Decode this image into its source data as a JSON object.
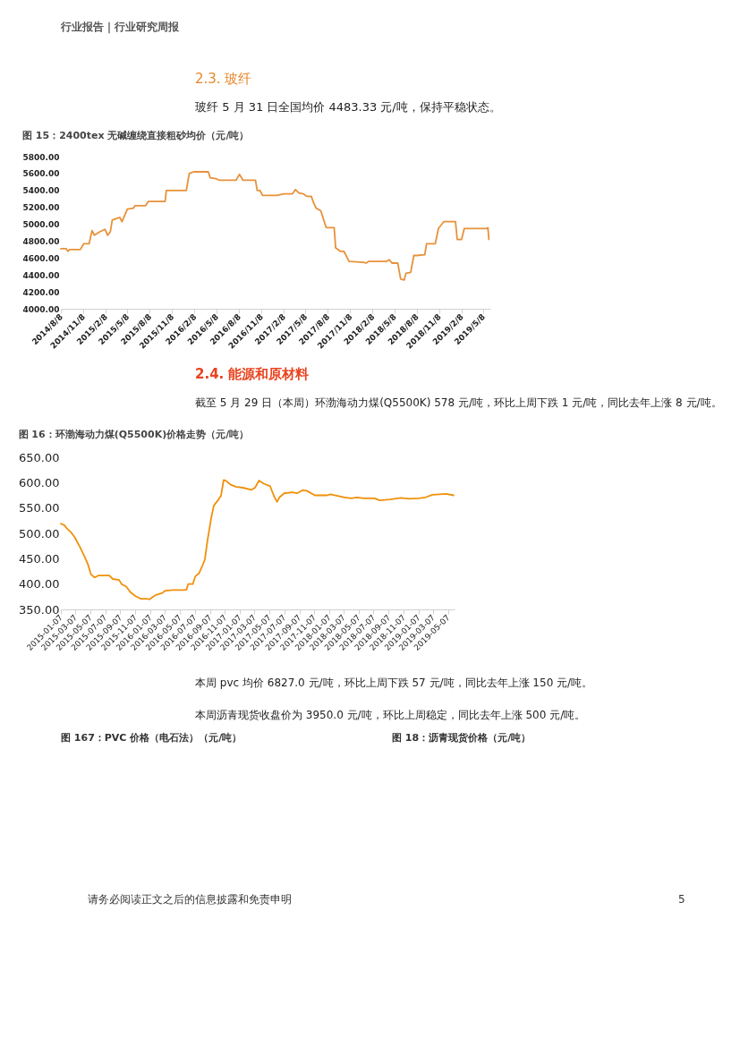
{
  "chart_data": [
    {
      "type": "line",
      "title": "图 15：2400tex 无碱缠绕直接粗砂均价（元/吨）",
      "annotations": [
        "行业报告｜行业研究周报",
        "2.3. 玻纤",
        "玻纤 5 月 31 日全国均价 4483.33 元/吨，保持平稳状态。"
      ],
      "series": [
        {
          "color": "#e8913a",
          "x": [
            "2014-08-08",
            "2014-08-30",
            "2014-09-06",
            "2014-09-13",
            "2014-10-27",
            "2014-11-10",
            "2014-12-02",
            "2014-12-14",
            "2014-12-24",
            "2015-01-15",
            "2015-02-05",
            "2015-02-16",
            "2015-02-27",
            "2015-03-07",
            "2015-03-28",
            "2015-04-07",
            "2015-04-16",
            "2015-05-08",
            "2015-06-02",
            "2015-06-09",
            "2015-07-22",
            "2015-08-02",
            "2015-10-10",
            "2015-10-15",
            "2016-01-05",
            "2016-01-17",
            "2016-02-04",
            "2016-04-04",
            "2016-04-12",
            "2016-05-05",
            "2016-05-19",
            "2016-07-27",
            "2016-08-10",
            "2016-08-25",
            "2016-10-15",
            "2016-10-22",
            "2016-11-02",
            "2016-11-13",
            "2017-01-10",
            "2017-02-08",
            "2017-03-16",
            "2017-03-28",
            "2017-04-11",
            "2017-04-29",
            "2017-05-13",
            "2017-06-01",
            "2017-06-11",
            "2017-06-21",
            "2017-07-10",
            "2017-08-01",
            "2017-09-03",
            "2017-09-09",
            "2017-09-28",
            "2017-10-13",
            "2017-11-03",
            "2018-01-01",
            "2018-01-12",
            "2018-01-23",
            "2018-04-06",
            "2018-04-17",
            "2018-04-28",
            "2018-05-22",
            "2018-06-03",
            "2018-06-17",
            "2018-06-25",
            "2018-07-14",
            "2018-07-27",
            "2018-08-07",
            "2018-09-10",
            "2018-09-17",
            "2018-10-23",
            "2018-11-05",
            "2018-11-27",
            "2019-01-14",
            "2019-01-21",
            "2019-02-08",
            "2019-02-19",
            "2019-05-23",
            "2019-05-27",
            "2019-05-31"
          ],
          "values": [
            4710,
            4710,
            4680,
            4700,
            4700,
            4770,
            4770,
            4925,
            4870,
            4910,
            4940,
            4870,
            4910,
            5050,
            5070,
            5080,
            5030,
            5180,
            5190,
            5220,
            5220,
            5270,
            5270,
            5400,
            5400,
            5600,
            5620,
            5620,
            5550,
            5540,
            5520,
            5520,
            5590,
            5520,
            5520,
            5400,
            5400,
            5340,
            5340,
            5360,
            5360,
            5410,
            5370,
            5360,
            5330,
            5330,
            5250,
            5190,
            5160,
            4960,
            4960,
            4720,
            4680,
            4680,
            4560,
            4550,
            4540,
            4560,
            4560,
            4580,
            4540,
            4540,
            4350,
            4340,
            4420,
            4430,
            4630,
            4630,
            4640,
            4770,
            4770,
            4950,
            5030,
            5030,
            4820,
            4820,
            4950,
            4950,
            4960,
            4820
          ]
        }
      ],
      "xlim": [
        "2014-08-08",
        "2019-06-06"
      ],
      "xticks": [
        {
          "value": "2014-08-08",
          "label": "2014/8/8"
        },
        {
          "value": "2014-11-08",
          "label": "2014/11/8"
        },
        {
          "value": "2015-02-08",
          "label": "2015/2/8"
        },
        {
          "value": "2015-05-08",
          "label": "2015/5/8"
        },
        {
          "value": "2015-08-08",
          "label": "2015/8/8"
        },
        {
          "value": "2015-11-08",
          "label": "2015/11/8"
        },
        {
          "value": "2016-02-08",
          "label": "2016/2/8"
        },
        {
          "value": "2016-05-08",
          "label": "2016/5/8"
        },
        {
          "value": "2016-08-08",
          "label": "2016/8/8"
        },
        {
          "value": "2016-11-08",
          "label": "2016/11/8"
        },
        {
          "value": "2017-02-08",
          "label": "2017/2/8"
        },
        {
          "value": "2017-05-08",
          "label": "2017/5/8"
        },
        {
          "value": "2017-08-08",
          "label": "2017/8/8"
        },
        {
          "value": "2017-11-08",
          "label": "2017/11/8"
        },
        {
          "value": "2018-02-08",
          "label": "2018/2/8"
        },
        {
          "value": "2018-05-08",
          "label": "2018/5/8"
        },
        {
          "value": "2018-08-08",
          "label": "2018/8/8"
        },
        {
          "value": "2018-11-08",
          "label": "2018/11/8"
        },
        {
          "value": "2019-02-08",
          "label": "2019/2/8"
        },
        {
          "value": "2019-05-08",
          "label": "2019/5/8"
        }
      ],
      "ylim": [
        4000,
        5800
      ],
      "yticks": [
        {
          "value": 4000,
          "label": "4000.00"
        },
        {
          "value": 4200,
          "label": "4200.00"
        },
        {
          "value": 4400,
          "label": "4400.00"
        },
        {
          "value": 4600,
          "label": "4600.00"
        },
        {
          "value": 4800,
          "label": "4800.00"
        },
        {
          "value": 5000,
          "label": "5000.00"
        },
        {
          "value": 5200,
          "label": "5200.00"
        },
        {
          "value": 5400,
          "label": "5400.00"
        },
        {
          "value": 5600,
          "label": "5600.00"
        },
        {
          "value": 5800,
          "label": "5800.00"
        }
      ],
      "grid": false
    },
    {
      "type": "line",
      "title": "图 16：环渤海动力煤(Q5500K)价格走势（元/吨）",
      "annotations": [
        "2.4. 能源和原材料",
        "截至 5 月 29 日（本周）环渤海动力煤(Q5500K) 578 元/吨，环比上周下跌 1 元/吨，同比去年上涨 8 元/吨。",
        "本周 pvc 均价 6827.0 元/吨，环比上周下跌 57 元/吨，同比去年上涨 150 元/吨。",
        "本周沥青现货收盘价为 3950.0 元/吨，环比上周稳定，同比去年上涨 500 元/吨。",
        "图 167：PVC 价格（电石法）（元/吨）",
        "图 18：沥青现货价格（元/吨）",
        "请务必阅读正文之后的信息披露和免责申明",
        "5"
      ],
      "series": [
        {
          "color": "#f0900a",
          "x": [
            "2015-01-07",
            "2015-01-21",
            "2015-02-02",
            "2015-02-16",
            "2015-03-05",
            "2015-03-24",
            "2015-04-15",
            "2015-04-29",
            "2015-05-10",
            "2015-05-25",
            "2015-06-11",
            "2015-07-24",
            "2015-08-07",
            "2015-09-02",
            "2015-09-12",
            "2015-10-01",
            "2015-10-18",
            "2015-11-08",
            "2015-11-30",
            "2015-12-21",
            "2016-01-05",
            "2016-01-19",
            "2016-02-02",
            "2016-02-24",
            "2016-03-09",
            "2016-04-07",
            "2016-05-20",
            "2016-06-03",
            "2016-06-10",
            "2016-06-29",
            "2016-07-09",
            "2016-07-24",
            "2016-08-07",
            "2016-08-17",
            "2016-08-28",
            "2016-09-12",
            "2016-09-23",
            "2016-10-11",
            "2016-10-22",
            "2016-11-02",
            "2016-11-11",
            "2016-11-30",
            "2016-12-21",
            "2017-01-19",
            "2017-02-24",
            "2017-03-10",
            "2017-03-26",
            "2017-04-15",
            "2017-05-11",
            "2017-05-25",
            "2017-06-08",
            "2017-06-18",
            "2017-07-07",
            "2017-08-08",
            "2017-08-29",
            "2017-09-20",
            "2017-10-07",
            "2017-11-09",
            "2017-12-29",
            "2018-01-12",
            "2018-02-10",
            "2018-03-11",
            "2018-04-08",
            "2018-04-30",
            "2018-05-29",
            "2018-07-11",
            "2018-08-01",
            "2018-09-13",
            "2018-10-26",
            "2018-12-01",
            "2019-01-06",
            "2019-02-04",
            "2019-03-05",
            "2019-04-03",
            "2019-05-01",
            "2019-05-30"
          ],
          "values": [
            519,
            516,
            509,
            503,
            492,
            475,
            453,
            437,
            419,
            413,
            417,
            417,
            410,
            408,
            400,
            395,
            384,
            376,
            371,
            371,
            370,
            375,
            379,
            382,
            387,
            388,
            388,
            389,
            400,
            400,
            415,
            421,
            436,
            448,
            486,
            530,
            555,
            566,
            574,
            605,
            604,
            596,
            592,
            590,
            586,
            590,
            604,
            598,
            593,
            575,
            562,
            571,
            579,
            581,
            579,
            585,
            584,
            575,
            575,
            577,
            574,
            571,
            569,
            571,
            569,
            569,
            565,
            567,
            570,
            568,
            569,
            571,
            576,
            577,
            578,
            575
          ]
        }
      ],
      "xlim": [
        "2015-01-07",
        "2019-06-03"
      ],
      "xticks": [
        "2015-01-07",
        "2015-03-07",
        "2015-05-07",
        "2015-07-07",
        "2015-09-07",
        "2015-11-07",
        "2016-01-07",
        "2016-03-07",
        "2016-05-07",
        "2016-07-07",
        "2016-09-07",
        "2016-11-07",
        "2017-01-07",
        "2017-03-07",
        "2017-05-07",
        "2017-07-07",
        "2017-09-07",
        "2017-11-07",
        "2018-01-07",
        "2018-03-07",
        "2018-05-07",
        "2018-07-07",
        "2018-09-07",
        "2018-11-07",
        "2019-01-07",
        "2019-03-07",
        "2019-05-07"
      ],
      "ylim": [
        350,
        650
      ],
      "yticks": [
        {
          "value": 350,
          "label": "350.00"
        },
        {
          "value": 400,
          "label": "400.00"
        },
        {
          "value": 450,
          "label": "450.00"
        },
        {
          "value": 500,
          "label": "500.00"
        },
        {
          "value": 550,
          "label": "550.00"
        },
        {
          "value": 600,
          "label": "600.00"
        },
        {
          "value": 650,
          "label": "650.00"
        }
      ],
      "grid": false
    }
  ]
}
